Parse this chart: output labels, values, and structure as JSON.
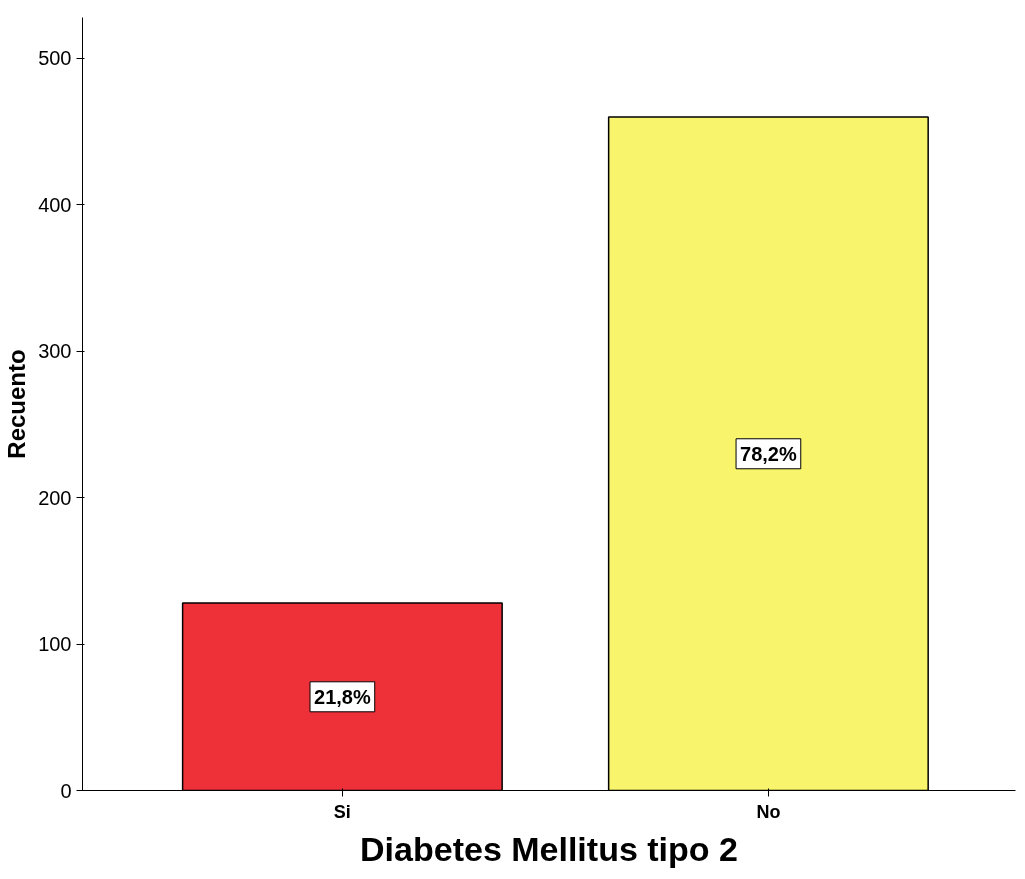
{
  "chart_data": {
    "type": "bar",
    "xlabel": "Diabetes Mellitus tipo 2",
    "ylabel": "Recuento",
    "categories": [
      "Si",
      "No"
    ],
    "values": [
      128,
      460
    ],
    "colors": [
      "#ee3138",
      "#f8f46c"
    ],
    "annotations": [
      "21,8%",
      "78,2%"
    ],
    "ylim": [
      0,
      528
    ],
    "yticks": [
      0,
      100,
      200,
      300,
      400,
      500
    ],
    "grid": false
  }
}
